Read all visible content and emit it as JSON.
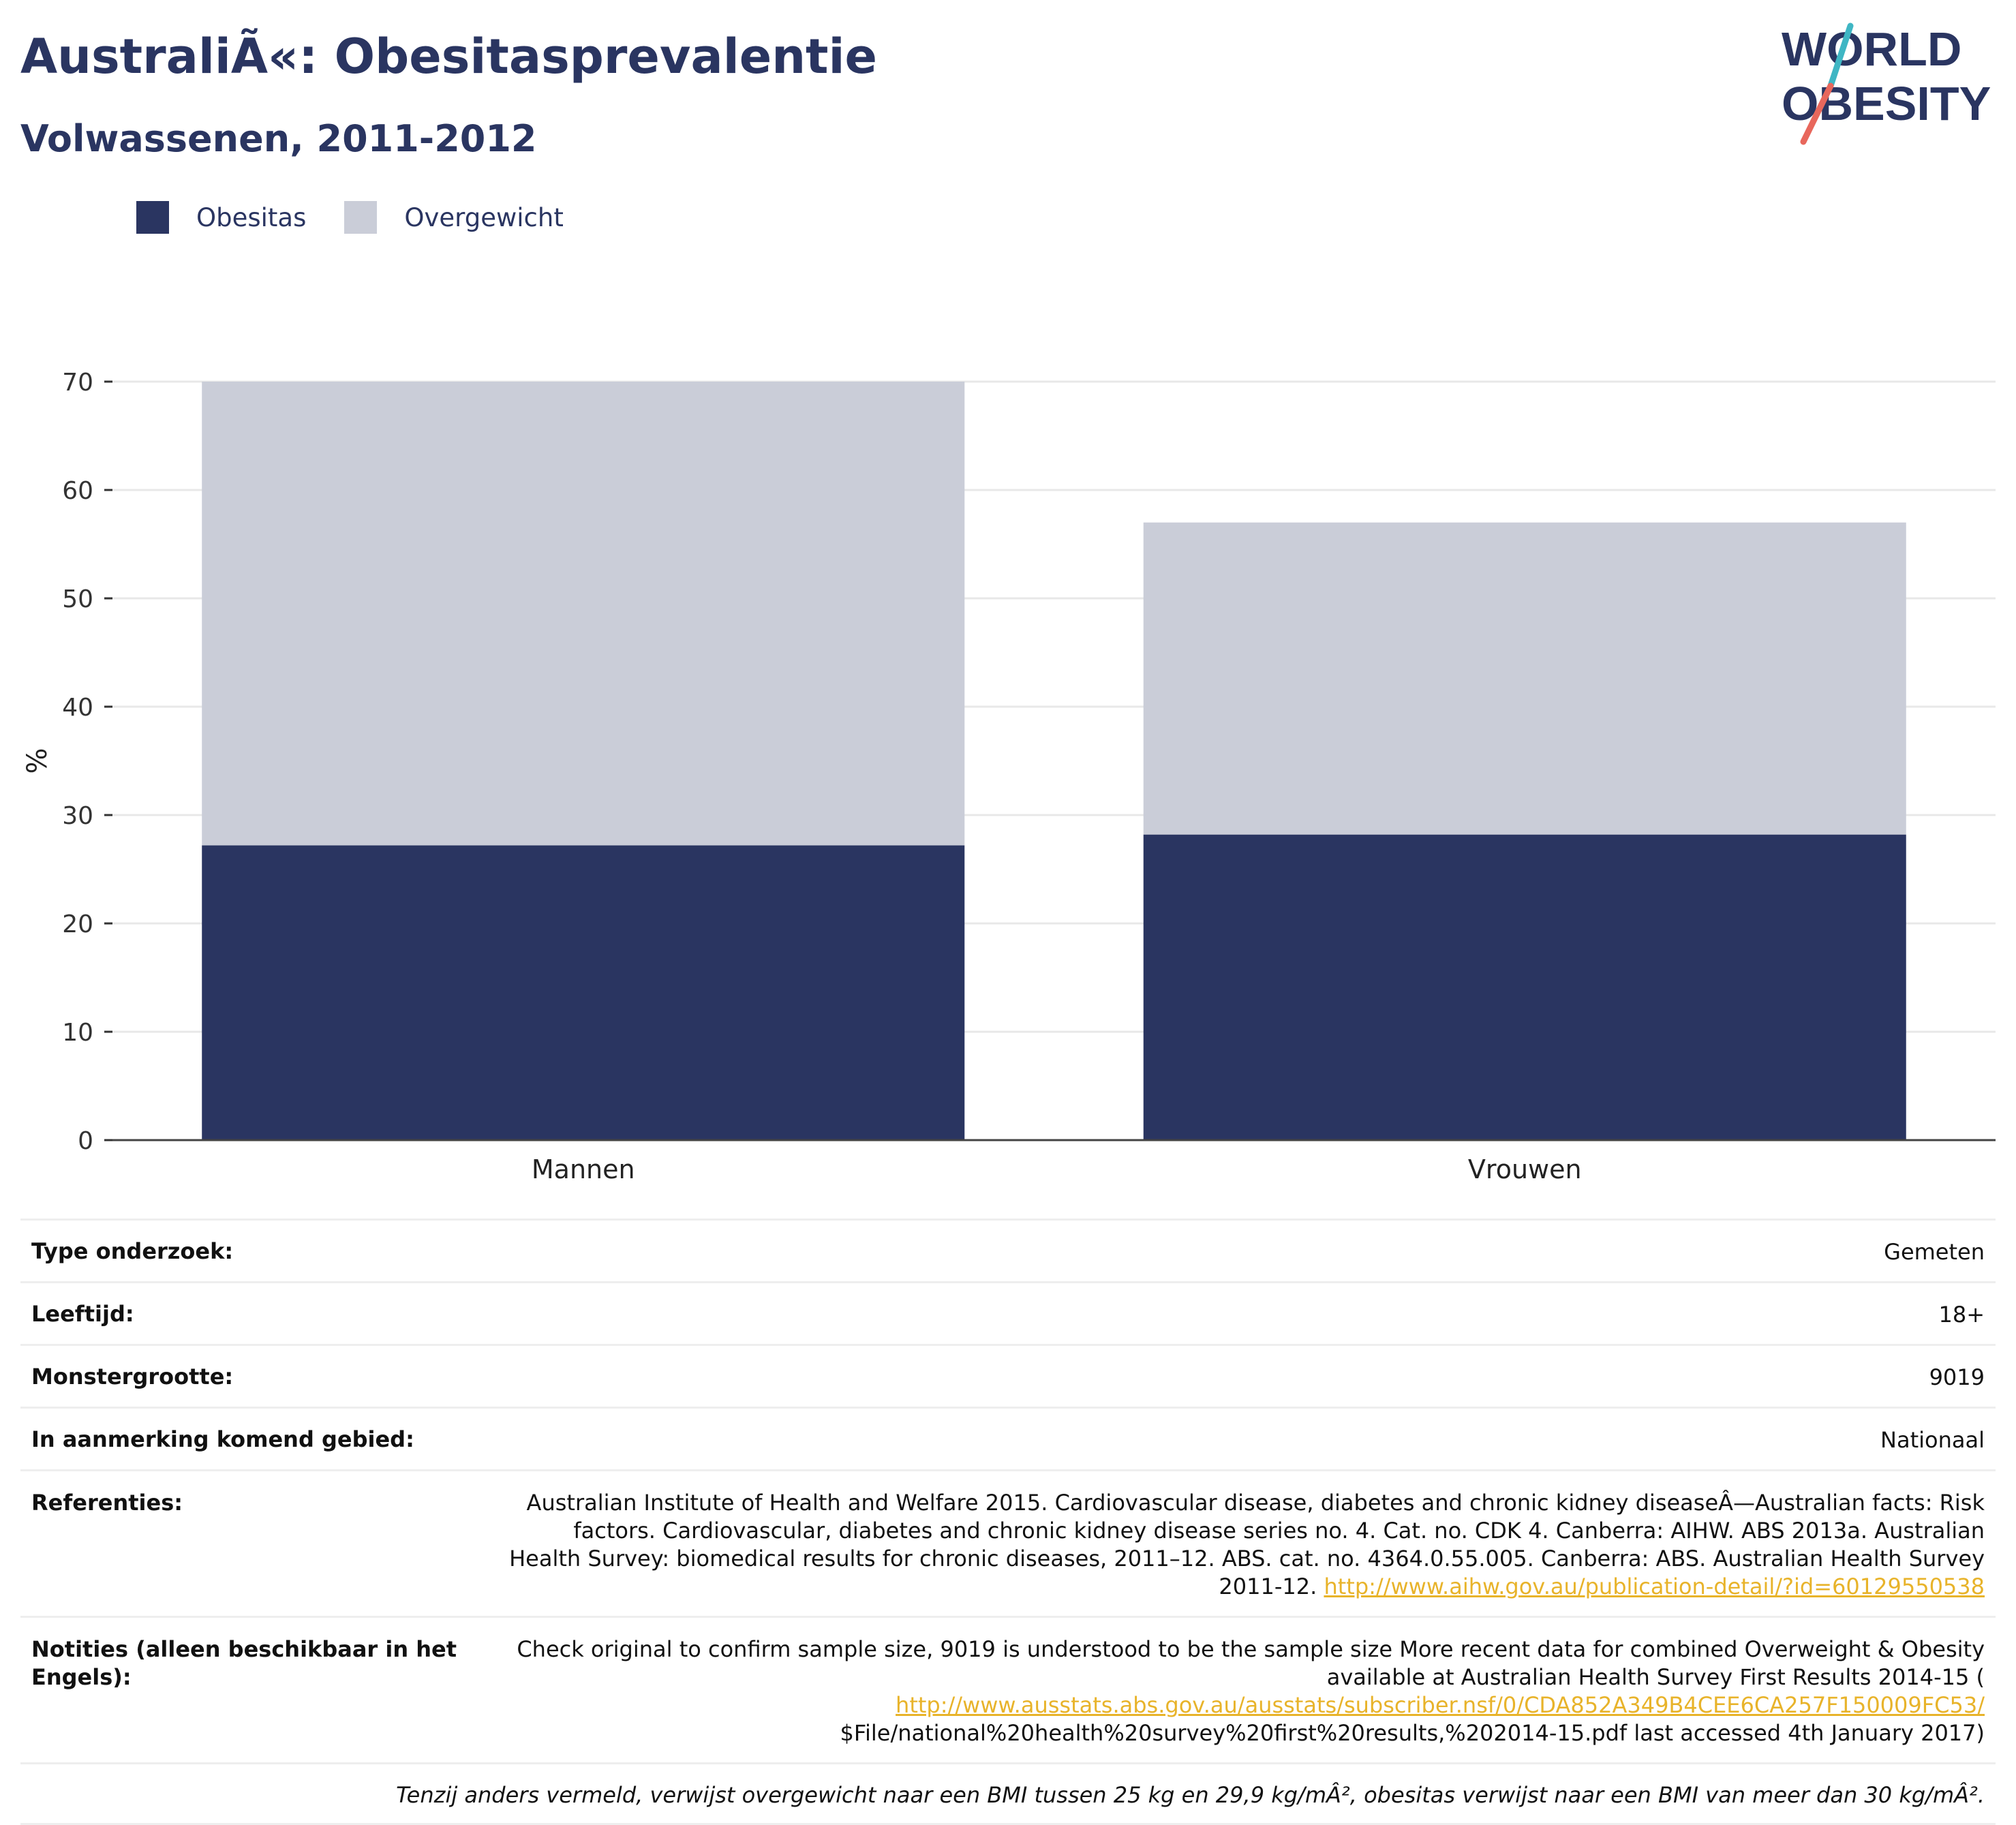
{
  "header": {
    "title": "AustraliÃ«: Obesitasprevalentie",
    "subtitle": "Volwassenen, 2011-2012",
    "logo_line1": "WORLD",
    "logo_line2": "OBESITY"
  },
  "legend": [
    {
      "label": "Obesitas",
      "color": "#2a3561"
    },
    {
      "label": "Overgewicht",
      "color": "#cacdd8"
    }
  ],
  "chart_data": {
    "type": "bar",
    "stacked": true,
    "categories": [
      "Mannen",
      "Vrouwen"
    ],
    "series": [
      {
        "name": "Obesitas",
        "values": [
          27.2,
          28.2
        ],
        "color": "#2a3561"
      },
      {
        "name": "Overgewicht",
        "values": [
          42.8,
          28.8
        ],
        "color": "#cacdd8"
      }
    ],
    "xlabel": "",
    "ylabel": "%",
    "ylim": [
      0,
      70
    ],
    "yticks": [
      0,
      10,
      20,
      30,
      40,
      50,
      60,
      70
    ],
    "grid": true,
    "legend_position": "top-left"
  },
  "meta": {
    "study_type_label": "Type onderzoek:",
    "study_type_value": "Gemeten",
    "age_label": "Leeftijd:",
    "age_value": "18+",
    "sample_label": "Monstergrootte:",
    "sample_value": "9019",
    "area_label": "In aanmerking komend gebied:",
    "area_value": "Nationaal",
    "refs_label": "Referenties:",
    "refs_text": "Australian Institute of Health and Welfare 2015. Cardiovascular disease, diabetes and chronic kidney diseaseÂ—Australian facts: Risk factors. Cardiovascular, diabetes and chronic kidney disease series no. 4. Cat. no. CDK 4. Canberra: AIHW. ABS 2013a. Australian Health Survey: biomedical results for chronic diseases, 2011–12. ABS. cat. no. 4364.0.55.005. Canberra: ABS. Australian Health Survey 2011-12. ",
    "refs_link": "http://www.aihw.gov.au/publication-detail/?id=60129550538",
    "notes_label": "Notities (alleen beschikbaar in het Engels):",
    "notes_text": "Check original to confirm sample size, 9019 is understood to be the sample size More recent data for combined Overweight & Obesity available at Australian Health Survey First Results 2014-15 (",
    "notes_link": "http://www.ausstats.abs.gov.au/ausstats/subscriber.nsf/0/CDA852A349B4CEE6CA257F150009FC53/",
    "notes_tail": "$File/national%20health%20survey%20first%20results,%202014-15.pdf last accessed 4th January 2017)",
    "footnote": "Tenzij anders vermeld, verwijst overgewicht naar een BMI tussen 25 kg en 29,9 kg/mÂ², obesitas verwijst naar een BMI van meer dan 30 kg/mÂ²."
  }
}
